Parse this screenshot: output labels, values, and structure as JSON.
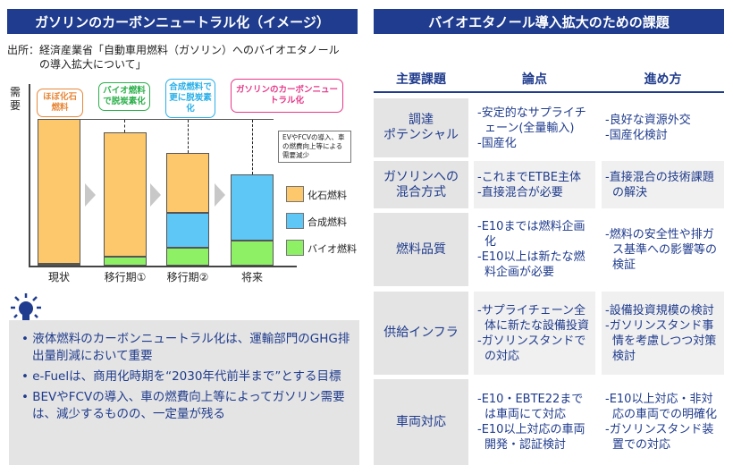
{
  "left_panel": {
    "title": "ガソリンのカーボンニュートラル化（イメージ）",
    "source_line1": "出所：経済産業省「自動車用燃料（ガソリン）へのバイオエタノール",
    "source_line2": "の導入拡大について」",
    "y_axis_label": "需要",
    "bubbles": [
      "ほぼ化石燃料",
      "バイオ燃料で脱炭素化",
      "合成燃料で更に脱炭素化",
      "ガソリンのカーボンニュートラル化"
    ],
    "note": "EVやFCVの導入、車の燃費向上等による需要減少",
    "bullets": [
      "• 液体燃料のカーボンニュートラル化は、運輸部門のGHG排出量削減において重要",
      "• e-Fuelは、商用化時期を“2030年代前半まで”とする目標",
      "• BEVやFCVの導入、車の燃費向上等によってガソリン需要は、減少するものの、一定量が残る"
    ]
  },
  "chart_data": {
    "type": "bar",
    "stacked": true,
    "categories": [
      "現状",
      "移行期①",
      "移行期②",
      "将来"
    ],
    "ylabel": "需要",
    "series": [
      {
        "name": "バイオ燃料",
        "color": "#8ef065",
        "values": [
          1,
          6,
          12,
          17
        ]
      },
      {
        "name": "合成燃料",
        "color": "#5ec7f5",
        "values": [
          0,
          0,
          24,
          45
        ]
      },
      {
        "name": "化石燃料",
        "color": "#fcc86b",
        "values": [
          99,
          85,
          41,
          0
        ]
      }
    ],
    "legend": [
      "化石燃料",
      "合成燃料",
      "バイオ燃料"
    ],
    "legend_position": "right",
    "ylim": [
      0,
      100
    ]
  },
  "right_panel": {
    "title": "バイオエタノール導入拡大のための課題",
    "headers": [
      "主要課題",
      "論点",
      "進め方"
    ],
    "rows": [
      {
        "label": "調達\nポテンシャル",
        "points": [
          "-安定的なサプライチェーン(全量輸入)",
          "-国産化"
        ],
        "actions": [
          "-良好な資源外交",
          "-国産化検討"
        ]
      },
      {
        "label": "ガソリンへの\n混合方式",
        "points": [
          "-これまでETBE主体",
          "-直接混合が必要"
        ],
        "actions": [
          "-直接混合の技術課題の解決"
        ]
      },
      {
        "label": "燃料品質",
        "points": [
          "-E10までは燃料企画化",
          "-E10以上は新たな燃料企画が必要"
        ],
        "actions": [
          "-燃料の安全性や排ガス基準への影響等の検証"
        ]
      },
      {
        "label": "供給インフラ",
        "points": [
          "-サプライチェーン全体に新たな設備投資",
          "-ガソリンスタンドでの対応"
        ],
        "actions": [
          "-設備投資規模の検討",
          "-ガソリンスタンド事情を考慮しつつ対策検討"
        ]
      },
      {
        "label": "車両対応",
        "points": [
          "-E10・EBTE22までは車両にて対応",
          "-E10以上対応の車両開発・認証検討"
        ],
        "actions": [
          "-E10以上対応・非対応の車両での明確化",
          "-ガソリンスタンド装置での対応"
        ]
      }
    ]
  }
}
